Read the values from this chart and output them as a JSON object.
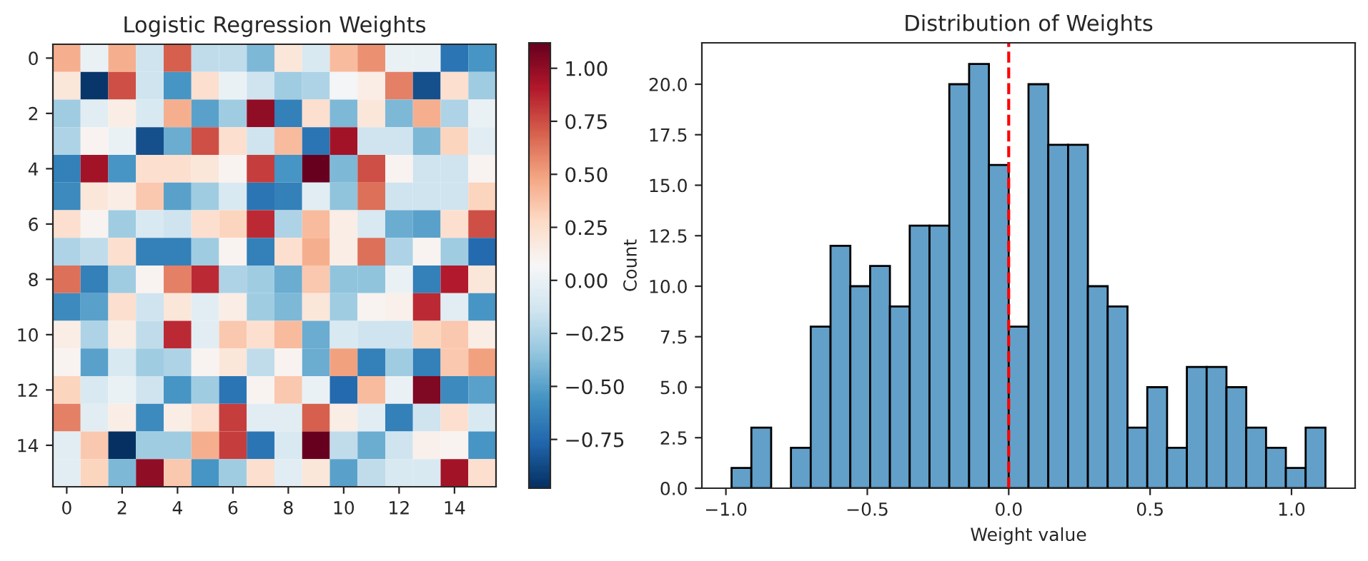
{
  "chart_data": [
    {
      "type": "heatmap",
      "title": "Logistic Regression Weights",
      "categories": [
        "0",
        null,
        "2",
        null,
        "4",
        null,
        "6",
        null,
        "8",
        null,
        "10",
        null,
        "12",
        null,
        "14",
        null
      ],
      "y_categories": [
        "0",
        null,
        "2",
        null,
        "4",
        null,
        "6",
        null,
        "8",
        null,
        "10",
        null,
        "12",
        null,
        "14",
        null
      ],
      "cells": [
        [
          0.45,
          0.0,
          0.45,
          -0.15,
          0.7,
          -0.2,
          -0.2,
          -0.4,
          0.2,
          -0.1,
          0.4,
          0.55,
          0.0,
          0.0,
          -0.7,
          -0.55
        ],
        [
          0.2,
          -0.95,
          0.75,
          -0.15,
          -0.55,
          0.25,
          0.0,
          -0.15,
          -0.3,
          -0.25,
          0.05,
          0.15,
          0.6,
          -0.85,
          0.25,
          -0.3
        ],
        [
          -0.3,
          -0.05,
          0.15,
          -0.1,
          0.45,
          -0.5,
          -0.3,
          1.0,
          -0.65,
          0.25,
          -0.4,
          0.2,
          -0.4,
          0.45,
          -0.25,
          0.0
        ],
        [
          -0.25,
          0.1,
          0.0,
          -0.85,
          -0.45,
          0.75,
          0.25,
          -0.15,
          0.4,
          -0.7,
          0.95,
          -0.15,
          -0.15,
          -0.4,
          0.3,
          -0.05
        ],
        [
          -0.65,
          0.95,
          -0.55,
          0.25,
          0.25,
          0.2,
          0.1,
          0.8,
          -0.55,
          1.12,
          -0.4,
          0.75,
          0.1,
          -0.15,
          -0.15,
          0.1
        ],
        [
          -0.6,
          0.2,
          0.15,
          0.35,
          -0.5,
          -0.3,
          -0.1,
          -0.7,
          -0.65,
          -0.05,
          -0.35,
          0.65,
          -0.15,
          -0.15,
          -0.15,
          0.3
        ],
        [
          0.25,
          0.1,
          -0.3,
          -0.1,
          -0.15,
          0.25,
          0.3,
          0.85,
          -0.25,
          0.4,
          0.15,
          -0.1,
          -0.45,
          -0.5,
          0.25,
          0.75
        ],
        [
          -0.25,
          -0.2,
          0.25,
          -0.65,
          -0.65,
          -0.3,
          0.1,
          -0.65,
          0.25,
          0.45,
          0.15,
          0.65,
          -0.25,
          0.1,
          -0.3,
          -0.75
        ],
        [
          0.65,
          -0.65,
          -0.3,
          0.1,
          0.6,
          0.85,
          -0.25,
          -0.3,
          -0.45,
          0.35,
          -0.35,
          -0.35,
          0.0,
          -0.65,
          0.9,
          0.2
        ],
        [
          -0.6,
          -0.5,
          0.25,
          -0.15,
          0.2,
          -0.05,
          0.15,
          -0.3,
          -0.4,
          0.2,
          -0.3,
          0.1,
          0.12,
          0.85,
          -0.05,
          -0.55
        ],
        [
          0.15,
          -0.25,
          0.15,
          -0.2,
          0.85,
          -0.05,
          0.35,
          0.25,
          0.4,
          -0.45,
          -0.1,
          -0.15,
          -0.15,
          0.3,
          0.35,
          0.15
        ],
        [
          0.1,
          -0.5,
          -0.1,
          -0.3,
          -0.25,
          0.1,
          0.2,
          -0.2,
          0.1,
          -0.45,
          0.5,
          -0.65,
          -0.3,
          -0.65,
          0.35,
          0.5
        ],
        [
          0.3,
          -0.1,
          0.0,
          -0.15,
          -0.55,
          -0.3,
          -0.7,
          0.1,
          0.35,
          0.0,
          -0.75,
          0.4,
          0.0,
          1.05,
          -0.6,
          -0.5
        ],
        [
          0.6,
          -0.05,
          0.15,
          -0.6,
          0.15,
          0.25,
          0.8,
          -0.05,
          -0.05,
          0.7,
          0.15,
          -0.05,
          -0.65,
          -0.15,
          0.25,
          -0.1
        ],
        [
          -0.05,
          0.35,
          -0.98,
          -0.3,
          -0.3,
          0.45,
          0.8,
          -0.7,
          -0.1,
          1.12,
          -0.2,
          -0.45,
          -0.15,
          0.12,
          0.1,
          -0.55
        ],
        [
          -0.05,
          0.3,
          -0.4,
          1.0,
          0.35,
          -0.55,
          -0.3,
          0.25,
          -0.05,
          0.2,
          -0.5,
          -0.2,
          -0.1,
          -0.1,
          0.95,
          0.25
        ]
      ],
      "clim": [
        -0.98,
        1.12
      ],
      "cticks": [
        {
          "value": -0.75,
          "label": "−0.75"
        },
        {
          "value": -0.5,
          "label": "−0.50"
        },
        {
          "value": -0.25,
          "label": "−0.25"
        },
        {
          "value": 0.0,
          "label": "0.00"
        },
        {
          "value": 0.25,
          "label": "0.25"
        },
        {
          "value": 0.5,
          "label": "0.50"
        },
        {
          "value": 0.75,
          "label": "0.75"
        },
        {
          "value": 1.0,
          "label": "1.00"
        }
      ]
    },
    {
      "type": "histogram",
      "title": "Distribution of Weights",
      "xlabel": "Weight value",
      "ylabel": "Count",
      "color": "#62a0ca",
      "bins": [
        -0.98,
        -0.91,
        -0.84,
        -0.77,
        -0.7,
        -0.63,
        -0.56,
        -0.49,
        -0.42,
        -0.35,
        -0.28,
        -0.21,
        -0.14,
        -0.07,
        0.0,
        0.07,
        0.14,
        0.21,
        0.28,
        0.35,
        0.42,
        0.49,
        0.56,
        0.63,
        0.7,
        0.77,
        0.84,
        0.91,
        0.98,
        1.05,
        1.12
      ],
      "values": [
        1,
        3,
        0,
        2,
        8,
        12,
        10,
        11,
        9,
        13,
        13,
        20,
        21,
        16,
        8,
        20,
        17,
        17,
        10,
        9,
        3,
        5,
        2,
        6,
        6,
        5,
        3,
        2,
        1,
        3
      ],
      "xlim": [
        -1.085,
        1.225
      ],
      "xticks": [
        {
          "value": -1.0,
          "label": "−1.0"
        },
        {
          "value": -0.5,
          "label": "−0.5"
        },
        {
          "value": 0.0,
          "label": "0.0"
        },
        {
          "value": 0.5,
          "label": "0.5"
        },
        {
          "value": 1.0,
          "label": "1.0"
        }
      ],
      "ylim": [
        0,
        22.05
      ],
      "yticks": [
        {
          "value": 0,
          "label": "0.0"
        },
        {
          "value": 2.5,
          "label": "2.5"
        },
        {
          "value": 5,
          "label": "5.0"
        },
        {
          "value": 7.5,
          "label": "7.5"
        },
        {
          "value": 10,
          "label": "10.0"
        },
        {
          "value": 12.5,
          "label": "12.5"
        },
        {
          "value": 15,
          "label": "15.0"
        },
        {
          "value": 17.5,
          "label": "17.5"
        },
        {
          "value": 20,
          "label": "20.0"
        }
      ],
      "ref_lines": [
        {
          "axis": "x",
          "value": 0.0,
          "color": "#ff0000",
          "line_style": "dashed"
        }
      ],
      "grid": false,
      "legend": false
    }
  ]
}
